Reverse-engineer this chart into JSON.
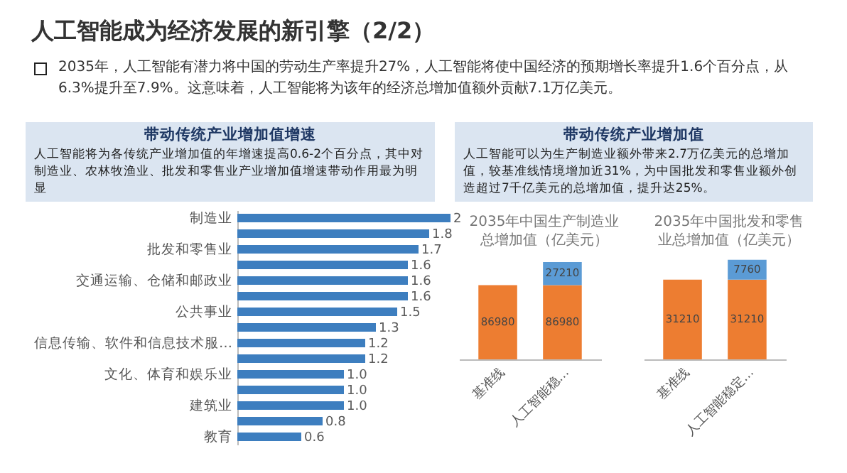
{
  "chart_data": [
    {
      "type": "other",
      "title": "人工智能成为经济发展的新引擎（2/2）",
      "annotations": [
        "2035年，人工智能有潜力将中国的劳动生产率提升27%，人工智能将使中国经济的预期增长率提升1.6个百分点，从6.3%提升至7.9%。这意味着，人工智能将为该年的经济总增加值额外贡献7.1万亿美元。"
      ]
    },
    {
      "type": "bar",
      "orientation": "horizontal",
      "title": "带动传统产业增加值增速",
      "subtitle": "人工智能将为各传统产业增加值的年增速提高0.6-2个百分点，其中对制造业、农林牧渔业、批发和零售业产业增加值增速带动作用最为明显",
      "categories": [
        "制造业",
        null,
        "批发和零售业",
        null,
        "交通运输、仓储和邮政业",
        null,
        "公共事业",
        null,
        "信息传输、软件和信息技术服…",
        null,
        "文化、体育和娱乐业",
        null,
        "建筑业",
        null,
        "教育"
      ],
      "values": [
        2,
        1.8,
        1.7,
        1.6,
        1.6,
        1.6,
        1.5,
        1.3,
        1.2,
        1.2,
        1.0,
        1.0,
        1.0,
        0.8,
        0.6
      ],
      "value_labels": [
        "2",
        "1.8",
        "1.7",
        "1.6",
        "1.6",
        "1.6",
        "1.5",
        "1.3",
        "1.2",
        "1.2",
        "1.0",
        "1.0",
        "1.0",
        "0.8",
        "0.6"
      ],
      "color": "#3d7ebf"
    },
    {
      "type": "other",
      "title": "带动传统产业增加值",
      "annotations": [
        "人工智能可以为生产制造业额外带来2.7万亿美元的总增加值，较基准线情境增加近31%，为中国批发和零售业额外创造超过7千亿美元的总增加值，提升达25%。"
      ]
    },
    {
      "type": "bar",
      "stacked": true,
      "title": "2035年中国生产制造业总增加值（亿美元）",
      "categories": [
        "基准线",
        "人工智能稳…"
      ],
      "data_labels": true,
      "series": [
        {
          "color": "#ed7d31",
          "values": [
            86980,
            86980
          ]
        },
        {
          "color": "#5b9bd5",
          "values": [
            null,
            27210
          ]
        }
      ]
    },
    {
      "type": "bar",
      "stacked": true,
      "title": "2035年中国批发和零售业总增加值（亿美元）",
      "categories": [
        "基准线",
        "人工智能稳定…"
      ],
      "data_labels": true,
      "series": [
        {
          "color": "#ed7d31",
          "values": [
            31210,
            31210
          ]
        },
        {
          "color": "#5b9bd5",
          "values": [
            null,
            7760
          ]
        }
      ]
    }
  ]
}
